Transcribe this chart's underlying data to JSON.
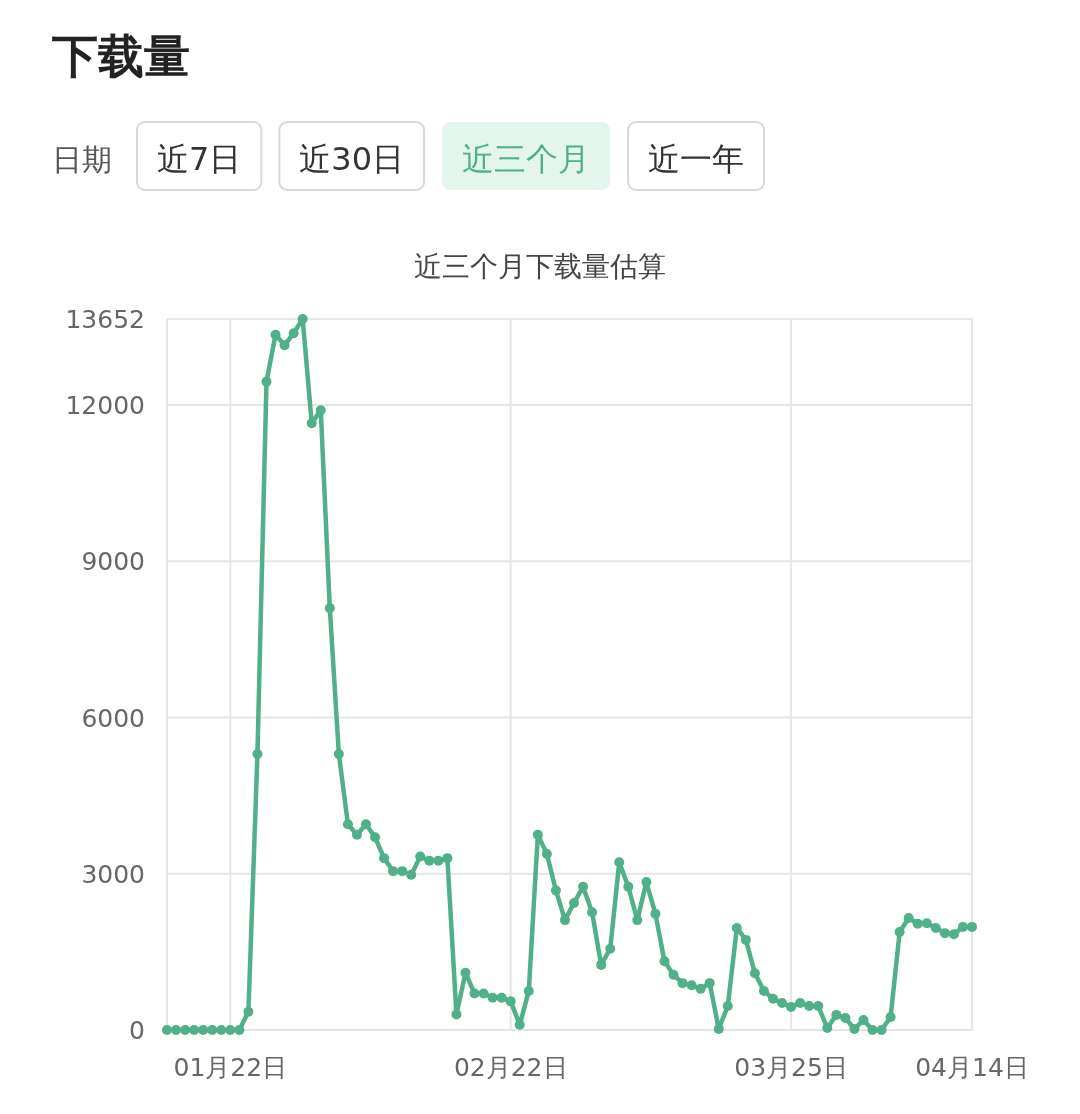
{
  "chart_data": {
    "type": "line",
    "title": "近三个月下载量估算",
    "annotations": [
      "下载量",
      "日期",
      "近7日",
      "近30日",
      "近三个月",
      "近一年"
    ],
    "x": [
      "--01-15",
      "--01-16",
      "--01-17",
      "--01-18",
      "--01-19",
      "--01-20",
      "--01-21",
      "--01-22",
      "--01-23",
      "--01-24",
      "--01-25",
      "--01-26",
      "--01-27",
      "--01-28",
      "--01-29",
      "--01-30",
      "--01-31",
      "--02-01",
      "--02-02",
      "--02-03",
      "--02-04",
      "--02-05",
      "--02-06",
      "--02-07",
      "--02-08",
      "--02-09",
      "--02-10",
      "--02-11",
      "--02-12",
      "--02-13",
      "--02-14",
      "--02-15",
      "--02-16",
      "--02-17",
      "--02-18",
      "--02-19",
      "--02-20",
      "--02-21",
      "--02-22",
      "--02-23",
      "--02-24",
      "--02-25",
      "--02-26",
      "--02-27",
      "--02-28",
      "--03-01",
      "--03-02",
      "--03-03",
      "--03-04",
      "--03-05",
      "--03-06",
      "--03-07",
      "--03-08",
      "--03-09",
      "--03-10",
      "--03-11",
      "--03-12",
      "--03-13",
      "--03-14",
      "--03-15",
      "--03-16",
      "--03-17",
      "--03-18",
      "--03-19",
      "--03-20",
      "--03-21",
      "--03-22",
      "--03-23",
      "--03-24",
      "--03-25",
      "--03-26",
      "--03-27",
      "--03-28",
      "--03-29",
      "--03-30",
      "--03-31",
      "--04-01",
      "--04-02",
      "--04-03",
      "--04-04",
      "--04-05",
      "--04-06",
      "--04-07",
      "--04-08",
      "--04-09",
      "--04-10",
      "--04-11",
      "--04-12",
      "--04-13",
      "--04-14"
    ],
    "series": [
      {
        "color": "#4fb08a",
        "values": [
          0,
          0,
          0,
          0,
          0,
          0,
          0,
          0,
          0,
          350,
          5300,
          12450,
          13350,
          13150,
          13380,
          13652,
          11650,
          11900,
          8100,
          5300,
          3950,
          3750,
          3950,
          3700,
          3300,
          3050,
          3050,
          2980,
          3330,
          3250,
          3250,
          3300,
          300,
          1100,
          700,
          700,
          620,
          620,
          550,
          100,
          750,
          3750,
          3380,
          2680,
          2110,
          2440,
          2750,
          2260,
          1250,
          1560,
          3220,
          2750,
          2110,
          2840,
          2230,
          1320,
          1060,
          900,
          860,
          790,
          900,
          20,
          460,
          1960,
          1730,
          1090,
          750,
          600,
          520,
          440,
          520,
          460,
          460,
          40,
          290,
          230,
          20,
          190,
          0,
          0,
          250,
          1880,
          2150,
          2040,
          2050,
          1960,
          1860,
          1840,
          1980,
          1980
        ]
      }
    ],
    "xlim": [
      "--01-15",
      "--04-14"
    ],
    "xticks": [
      {
        "value": "--01-22",
        "label": "01月22日"
      },
      {
        "value": "--02-22",
        "label": "02月22日"
      },
      {
        "value": "--03-25",
        "label": "03月25日"
      },
      {
        "value": "--04-14",
        "label": "04月14日"
      }
    ],
    "ylim": [
      0,
      13652
    ],
    "yticks": [
      0,
      3000,
      6000,
      9000,
      12000,
      13652
    ],
    "grid": true,
    "marker": "circle",
    "line_style": "solid"
  }
}
